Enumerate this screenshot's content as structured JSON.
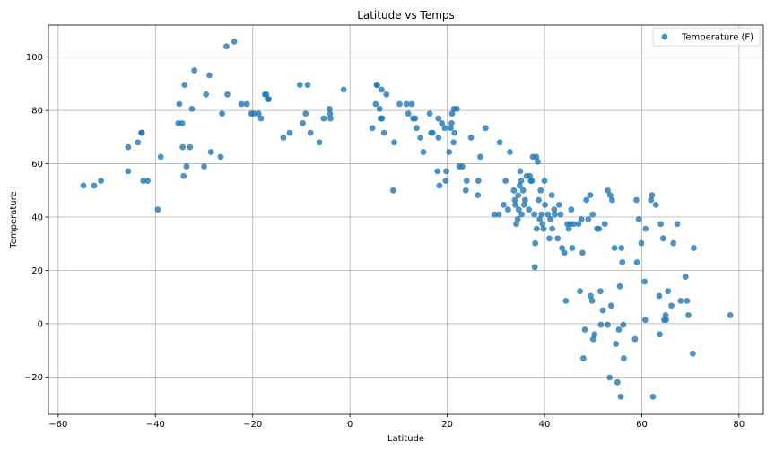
{
  "chart_data": {
    "type": "scatter",
    "title": "Latitude vs Temps",
    "xlabel": "Latitude",
    "ylabel": "Temperature",
    "xlim": [
      -62,
      85
    ],
    "ylim": [
      -34,
      112
    ],
    "xticks": [
      -60,
      -40,
      -20,
      0,
      20,
      40,
      60,
      80
    ],
    "yticks": [
      -20,
      0,
      20,
      40,
      60,
      80,
      100
    ],
    "xtick_labels": [
      "−60",
      "−40",
      "−20",
      "0",
      "20",
      "40",
      "60",
      "80"
    ],
    "ytick_labels": [
      "−20",
      "0",
      "20",
      "40",
      "60",
      "80",
      "100"
    ],
    "grid": true,
    "legend_position": "top-right",
    "series": [
      {
        "name": "Temperature (F)",
        "color": "#1f77b4",
        "points": [
          [
            -54.8,
            51.8
          ],
          [
            -52.6,
            51.8
          ],
          [
            -51.2,
            53.6
          ],
          [
            -45.6,
            66.2
          ],
          [
            -45.6,
            57.2
          ],
          [
            -43.6,
            68.0
          ],
          [
            -42.9,
            71.6
          ],
          [
            -42.8,
            71.6
          ],
          [
            -42.5,
            53.6
          ],
          [
            -41.6,
            53.6
          ],
          [
            -39.5,
            42.8
          ],
          [
            -38.9,
            62.6
          ],
          [
            -35.3,
            75.2
          ],
          [
            -35.1,
            82.4
          ],
          [
            -34.5,
            75.2
          ],
          [
            -34.4,
            66.2
          ],
          [
            -34.2,
            55.4
          ],
          [
            -34.0,
            89.6
          ],
          [
            -33.6,
            59.0
          ],
          [
            -32.9,
            66.2
          ],
          [
            -32.5,
            80.6
          ],
          [
            -32.0,
            95.0
          ],
          [
            -30.0,
            59.0
          ],
          [
            -29.6,
            86.0
          ],
          [
            -28.9,
            93.2
          ],
          [
            -28.6,
            64.4
          ],
          [
            -26.6,
            62.6
          ],
          [
            -26.3,
            78.8
          ],
          [
            -25.4,
            104.0
          ],
          [
            -25.2,
            86.0
          ],
          [
            -23.8,
            105.8
          ],
          [
            -22.3,
            82.4
          ],
          [
            -21.2,
            82.4
          ],
          [
            -20.3,
            78.8
          ],
          [
            -19.8,
            78.8
          ],
          [
            -18.8,
            78.8
          ],
          [
            -18.3,
            77.0
          ],
          [
            -17.5,
            86.0
          ],
          [
            -17.2,
            86.0
          ],
          [
            -16.9,
            84.2
          ],
          [
            -16.7,
            84.2
          ],
          [
            -13.7,
            69.8
          ],
          [
            -12.4,
            71.6
          ],
          [
            -10.3,
            89.6
          ],
          [
            -9.7,
            75.2
          ],
          [
            -9.1,
            78.8
          ],
          [
            -8.7,
            89.6
          ],
          [
            -8.1,
            71.6
          ],
          [
            -6.3,
            68.0
          ],
          [
            -5.4,
            77.0
          ],
          [
            -4.2,
            80.6
          ],
          [
            -4.1,
            78.8
          ],
          [
            -4.0,
            77.0
          ],
          [
            -1.3,
            87.8
          ],
          [
            4.6,
            73.4
          ],
          [
            5.3,
            82.4
          ],
          [
            5.5,
            89.6
          ],
          [
            5.6,
            89.6
          ],
          [
            6.1,
            80.6
          ],
          [
            6.3,
            77.0
          ],
          [
            6.5,
            87.8
          ],
          [
            6.6,
            77.0
          ],
          [
            7.0,
            71.6
          ],
          [
            7.5,
            86.0
          ],
          [
            8.9,
            50.0
          ],
          [
            9.1,
            68.0
          ],
          [
            10.2,
            82.4
          ],
          [
            11.6,
            82.4
          ],
          [
            12.0,
            78.8
          ],
          [
            12.7,
            82.4
          ],
          [
            13.0,
            77.0
          ],
          [
            13.4,
            77.0
          ],
          [
            13.7,
            73.4
          ],
          [
            14.5,
            69.8
          ],
          [
            15.1,
            64.4
          ],
          [
            16.4,
            78.8
          ],
          [
            16.7,
            71.6
          ],
          [
            17.0,
            71.6
          ],
          [
            18.0,
            57.2
          ],
          [
            18.2,
            69.8
          ],
          [
            18.2,
            77.0
          ],
          [
            18.4,
            51.8
          ],
          [
            18.9,
            75.2
          ],
          [
            19.5,
            73.4
          ],
          [
            19.7,
            53.6
          ],
          [
            19.8,
            57.2
          ],
          [
            20.4,
            64.4
          ],
          [
            20.7,
            73.4
          ],
          [
            20.9,
            75.2
          ],
          [
            21.0,
            78.8
          ],
          [
            21.3,
            68.0
          ],
          [
            21.4,
            80.6
          ],
          [
            21.5,
            71.6
          ],
          [
            22.0,
            80.6
          ],
          [
            22.5,
            59.0
          ],
          [
            23.1,
            59.0
          ],
          [
            23.8,
            50.0
          ],
          [
            24.0,
            53.6
          ],
          [
            24.9,
            69.8
          ],
          [
            26.3,
            48.2
          ],
          [
            26.4,
            53.6
          ],
          [
            26.8,
            62.6
          ],
          [
            27.9,
            73.4
          ],
          [
            29.7,
            41.0
          ],
          [
            30.6,
            41.0
          ],
          [
            30.8,
            68.0
          ],
          [
            31.6,
            44.6
          ],
          [
            32.0,
            53.6
          ],
          [
            32.5,
            42.8
          ],
          [
            32.9,
            64.4
          ],
          [
            33.7,
            50.0
          ],
          [
            33.9,
            46.4
          ],
          [
            34.0,
            44.6
          ],
          [
            34.2,
            37.4
          ],
          [
            34.5,
            39.2
          ],
          [
            34.6,
            48.2
          ],
          [
            34.7,
            42.8
          ],
          [
            34.9,
            51.8
          ],
          [
            35.0,
            57.2
          ],
          [
            35.2,
            53.6
          ],
          [
            35.3,
            41.0
          ],
          [
            35.6,
            50.0
          ],
          [
            35.8,
            44.6
          ],
          [
            36.0,
            46.4
          ],
          [
            36.3,
            55.4
          ],
          [
            36.8,
            42.8
          ],
          [
            37.0,
            55.4
          ],
          [
            37.2,
            53.6
          ],
          [
            37.4,
            53.6
          ],
          [
            37.6,
            62.6
          ],
          [
            37.9,
            41.0
          ],
          [
            38.0,
            21.2
          ],
          [
            38.1,
            30.2
          ],
          [
            38.3,
            62.6
          ],
          [
            38.4,
            35.6
          ],
          [
            38.6,
            60.8
          ],
          [
            38.8,
            46.4
          ],
          [
            39.0,
            39.2
          ],
          [
            39.2,
            50.0
          ],
          [
            39.4,
            41.0
          ],
          [
            39.6,
            37.4
          ],
          [
            39.8,
            35.6
          ],
          [
            40.0,
            53.6
          ],
          [
            40.1,
            44.6
          ],
          [
            40.7,
            41.0
          ],
          [
            41.0,
            32.0
          ],
          [
            41.2,
            39.2
          ],
          [
            41.5,
            48.2
          ],
          [
            41.6,
            35.6
          ],
          [
            42.0,
            42.8
          ],
          [
            42.1,
            41.0
          ],
          [
            42.7,
            32.0
          ],
          [
            43.0,
            44.6
          ],
          [
            43.3,
            41.0
          ],
          [
            43.6,
            28.4
          ],
          [
            44.1,
            26.6
          ],
          [
            44.4,
            8.6
          ],
          [
            44.7,
            37.4
          ],
          [
            45.0,
            35.6
          ],
          [
            45.3,
            37.4
          ],
          [
            45.5,
            42.8
          ],
          [
            45.7,
            28.4
          ],
          [
            46.0,
            37.4
          ],
          [
            47.0,
            37.4
          ],
          [
            47.3,
            12.2
          ],
          [
            47.6,
            39.2
          ],
          [
            47.8,
            26.6
          ],
          [
            48.0,
            -13.0
          ],
          [
            48.3,
            -2.2
          ],
          [
            48.6,
            46.4
          ],
          [
            49.0,
            39.2
          ],
          [
            49.4,
            48.2
          ],
          [
            49.5,
            10.4
          ],
          [
            49.8,
            8.6
          ],
          [
            49.9,
            41.0
          ],
          [
            50.0,
            -5.8
          ],
          [
            50.3,
            -4.0
          ],
          [
            50.8,
            35.6
          ],
          [
            51.2,
            35.6
          ],
          [
            51.5,
            12.2
          ],
          [
            51.6,
            -0.4
          ],
          [
            52.0,
            5.0
          ],
          [
            52.4,
            37.4
          ],
          [
            53.0,
            -0.4
          ],
          [
            53.0,
            50.0
          ],
          [
            53.4,
            -20.2
          ],
          [
            53.5,
            48.2
          ],
          [
            53.7,
            6.8
          ],
          [
            53.9,
            46.4
          ],
          [
            54.4,
            28.4
          ],
          [
            54.7,
            -7.6
          ],
          [
            55.0,
            -22.0
          ],
          [
            55.3,
            -2.2
          ],
          [
            55.5,
            14.0
          ],
          [
            55.7,
            -27.4
          ],
          [
            55.8,
            28.4
          ],
          [
            56.0,
            23.0
          ],
          [
            56.2,
            -0.4
          ],
          [
            56.3,
            -13.0
          ],
          [
            58.6,
            -5.8
          ],
          [
            58.9,
            46.4
          ],
          [
            59.0,
            23.0
          ],
          [
            59.4,
            39.2
          ],
          [
            59.9,
            30.2
          ],
          [
            60.6,
            15.8
          ],
          [
            60.7,
            1.4
          ],
          [
            60.8,
            35.6
          ],
          [
            61.9,
            46.4
          ],
          [
            62.1,
            48.2
          ],
          [
            62.3,
            -27.4
          ],
          [
            62.9,
            44.6
          ],
          [
            63.6,
            10.4
          ],
          [
            63.7,
            -4.0
          ],
          [
            63.9,
            37.4
          ],
          [
            64.4,
            32.0
          ],
          [
            64.6,
            1.4
          ],
          [
            64.9,
            3.2
          ],
          [
            65.0,
            1.4
          ],
          [
            65.4,
            12.2
          ],
          [
            66.1,
            6.8
          ],
          [
            66.5,
            30.2
          ],
          [
            67.3,
            37.4
          ],
          [
            68.0,
            8.6
          ],
          [
            69.0,
            17.6
          ],
          [
            69.3,
            8.6
          ],
          [
            69.6,
            3.2
          ],
          [
            70.5,
            -11.2
          ],
          [
            70.7,
            28.4
          ],
          [
            78.2,
            3.2
          ]
        ]
      }
    ]
  }
}
